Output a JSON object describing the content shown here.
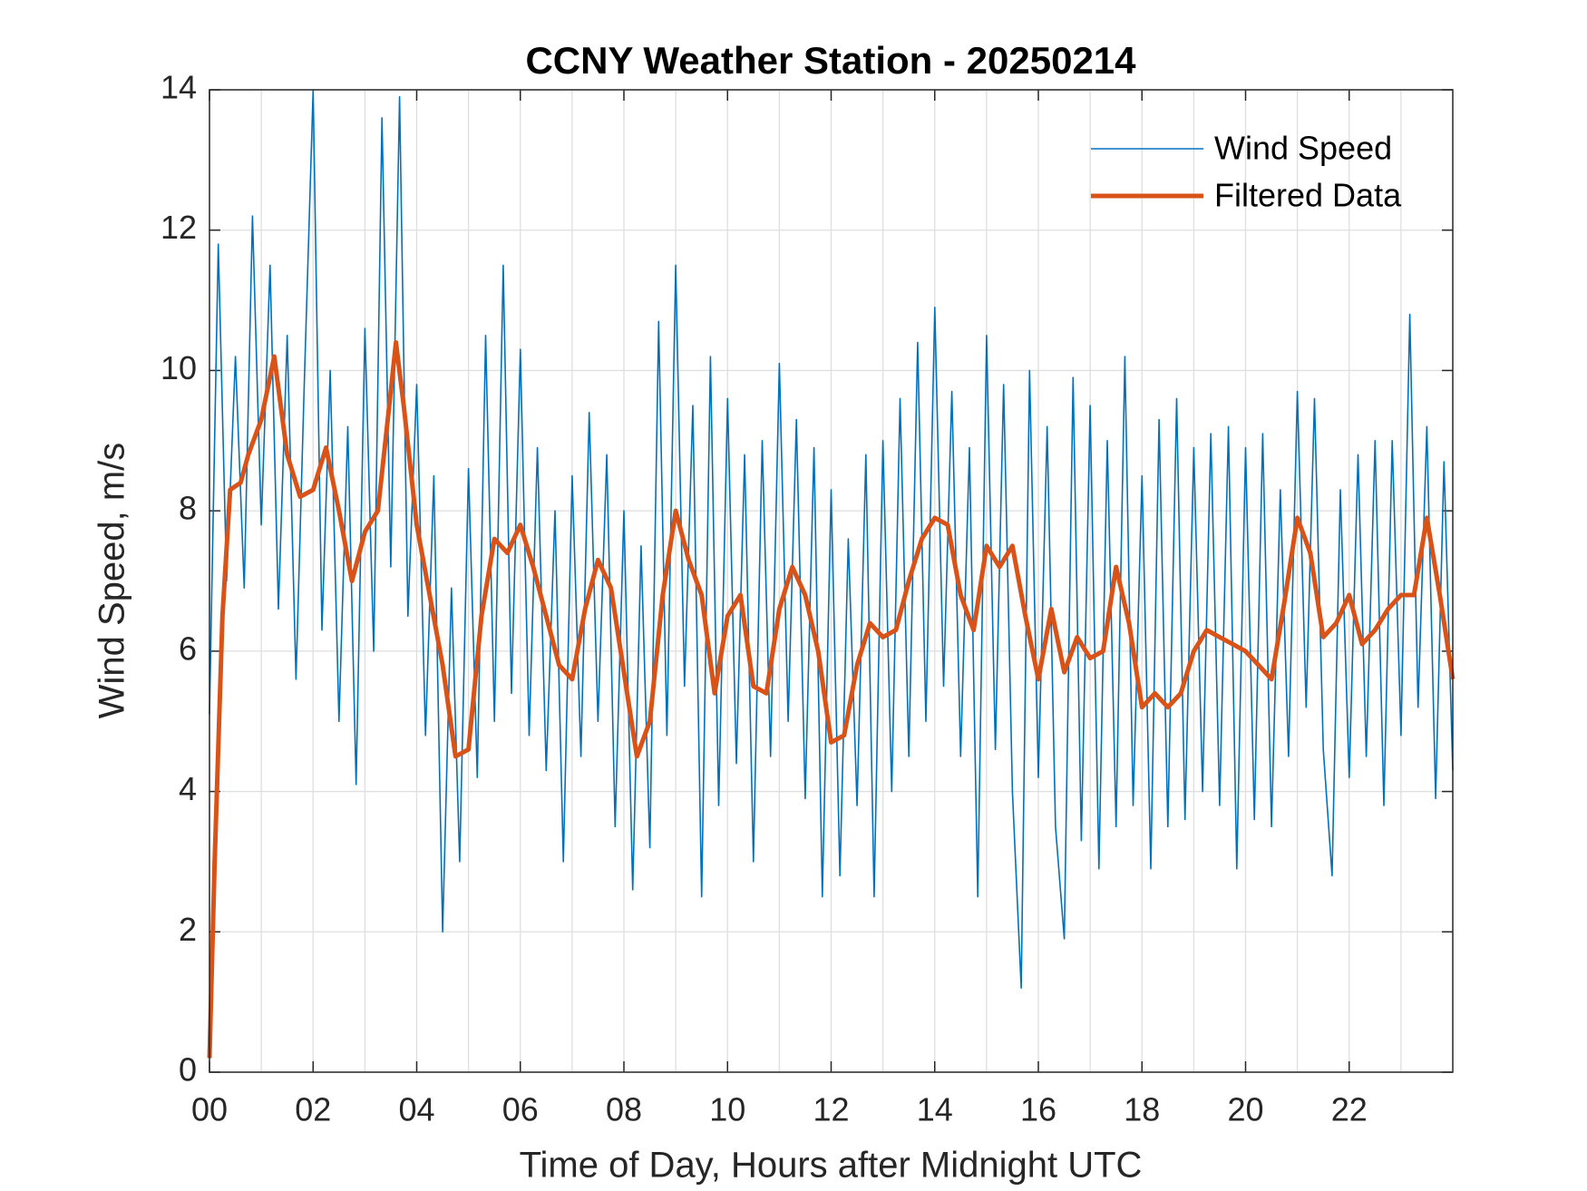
{
  "chart_data": {
    "type": "line",
    "title": "CCNY Weather Station - 20250214",
    "xlabel": "Time of Day, Hours after Midnight UTC",
    "ylabel": "Wind Speed, m/s",
    "xlim": [
      0,
      24
    ],
    "ylim": [
      0,
      14
    ],
    "xticks": [
      {
        "value": 0,
        "label": "00"
      },
      {
        "value": 2,
        "label": "02"
      },
      {
        "value": 4,
        "label": "04"
      },
      {
        "value": 6,
        "label": "06"
      },
      {
        "value": 8,
        "label": "08"
      },
      {
        "value": 10,
        "label": "10"
      },
      {
        "value": 12,
        "label": "12"
      },
      {
        "value": 14,
        "label": "14"
      },
      {
        "value": 16,
        "label": "16"
      },
      {
        "value": 18,
        "label": "18"
      },
      {
        "value": 20,
        "label": "20"
      },
      {
        "value": 22,
        "label": "22"
      }
    ],
    "xminor_grid": [
      1,
      3,
      5,
      7,
      9,
      11,
      13,
      15,
      17,
      19,
      21,
      23
    ],
    "yticks": [
      0,
      2,
      4,
      6,
      8,
      10,
      12,
      14
    ],
    "grid": true,
    "legend": "upper right",
    "series": [
      {
        "name": "Wind Speed",
        "color": "#0072BD",
        "x": [
          0,
          0.17,
          0.33,
          0.5,
          0.67,
          0.83,
          1,
          1.17,
          1.33,
          1.5,
          1.67,
          1.83,
          2,
          2.17,
          2.33,
          2.5,
          2.67,
          2.83,
          3,
          3.17,
          3.33,
          3.5,
          3.67,
          3.83,
          4,
          4.17,
          4.33,
          4.5,
          4.67,
          4.83,
          5,
          5.17,
          5.33,
          5.5,
          5.67,
          5.83,
          6,
          6.17,
          6.33,
          6.5,
          6.67,
          6.83,
          7,
          7.17,
          7.33,
          7.5,
          7.67,
          7.83,
          8,
          8.17,
          8.33,
          8.5,
          8.67,
          8.83,
          9,
          9.17,
          9.33,
          9.5,
          9.67,
          9.83,
          10,
          10.17,
          10.33,
          10.5,
          10.67,
          10.83,
          11,
          11.17,
          11.33,
          11.5,
          11.67,
          11.83,
          12,
          12.17,
          12.33,
          12.5,
          12.67,
          12.83,
          13,
          13.17,
          13.33,
          13.5,
          13.67,
          13.83,
          14,
          14.17,
          14.33,
          14.5,
          14.67,
          14.83,
          15,
          15.17,
          15.33,
          15.5,
          15.67,
          15.83,
          16,
          16.17,
          16.33,
          16.5,
          16.67,
          16.83,
          17,
          17.17,
          17.33,
          17.5,
          17.67,
          17.83,
          18,
          18.17,
          18.33,
          18.5,
          18.67,
          18.83,
          19,
          19.17,
          19.33,
          19.5,
          19.67,
          19.83,
          20,
          20.17,
          20.33,
          20.5,
          20.67,
          20.83,
          21,
          21.17,
          21.33,
          21.5,
          21.67,
          21.83,
          22,
          22.17,
          22.33,
          22.5,
          22.67,
          22.83,
          23,
          23.17,
          23.33,
          23.5,
          23.67,
          23.83,
          24
        ],
        "values": [
          5.1,
          11.8,
          7.0,
          10.2,
          6.9,
          12.2,
          7.8,
          11.5,
          6.6,
          10.5,
          5.6,
          9.8,
          14.0,
          6.3,
          10.0,
          5.0,
          9.2,
          4.1,
          10.6,
          6.0,
          13.6,
          7.2,
          13.9,
          6.5,
          9.8,
          4.8,
          8.5,
          2.0,
          6.9,
          3.0,
          8.6,
          4.2,
          10.5,
          5.0,
          11.5,
          5.4,
          10.3,
          4.8,
          8.9,
          4.3,
          8.0,
          3.0,
          8.5,
          4.5,
          9.4,
          5.0,
          8.8,
          3.5,
          8.0,
          2.6,
          7.5,
          3.2,
          10.7,
          4.8,
          11.5,
          5.5,
          9.5,
          2.5,
          10.2,
          3.8,
          9.6,
          4.4,
          8.8,
          3.0,
          9.0,
          4.5,
          10.1,
          5.0,
          9.3,
          3.9,
          8.9,
          2.5,
          8.3,
          2.8,
          7.6,
          3.8,
          8.8,
          2.5,
          9.0,
          4.0,
          9.6,
          4.5,
          10.4,
          5.0,
          10.9,
          5.5,
          9.7,
          4.5,
          8.9,
          2.5,
          10.5,
          4.6,
          9.8,
          4.0,
          1.2,
          10.0,
          4.2,
          9.2,
          3.5,
          1.9,
          9.9,
          3.3,
          9.5,
          2.9,
          9.0,
          3.5,
          10.2,
          3.8,
          8.5,
          2.9,
          9.3,
          3.5,
          9.6,
          3.6,
          8.9,
          4.0,
          9.1,
          3.8,
          9.2,
          2.9,
          8.9,
          3.6,
          9.1,
          3.5,
          8.3,
          4.5,
          9.7,
          5.2,
          9.6,
          4.6,
          2.8,
          8.3,
          4.2,
          8.8,
          4.5,
          9.0,
          3.8,
          9.0,
          4.8,
          10.8,
          5.2,
          9.2,
          3.9,
          8.7,
          4.3
        ]
      },
      {
        "name": "Filtered Data",
        "color": "#D95319",
        "x": [
          0,
          0.1,
          0.25,
          0.4,
          0.6,
          0.75,
          1,
          1.25,
          1.5,
          1.75,
          2,
          2.25,
          2.5,
          2.75,
          3,
          3.25,
          3.5,
          3.6,
          3.75,
          4,
          4.25,
          4.5,
          4.75,
          5,
          5.25,
          5.5,
          5.75,
          6,
          6.25,
          6.5,
          6.75,
          7,
          7.25,
          7.5,
          7.75,
          8,
          8.25,
          8.5,
          8.75,
          9,
          9.25,
          9.5,
          9.75,
          10,
          10.25,
          10.5,
          10.75,
          11,
          11.25,
          11.5,
          11.75,
          12,
          12.25,
          12.5,
          12.75,
          13,
          13.25,
          13.5,
          13.75,
          14,
          14.25,
          14.5,
          14.75,
          15,
          15.25,
          15.5,
          15.75,
          16,
          16.25,
          16.5,
          16.75,
          17,
          17.25,
          17.5,
          17.75,
          18,
          18.25,
          18.5,
          18.75,
          19,
          19.25,
          19.5,
          19.75,
          20,
          20.25,
          20.5,
          20.75,
          21,
          21.25,
          21.5,
          21.75,
          22,
          22.25,
          22.5,
          22.75,
          23,
          23.25,
          23.5,
          23.75,
          24
        ],
        "values": [
          0.2,
          3,
          6.5,
          8.3,
          8.4,
          8.8,
          9.3,
          10.2,
          8.8,
          8.2,
          8.3,
          8.9,
          8.0,
          7.0,
          7.7,
          8.0,
          9.7,
          10.4,
          9.5,
          7.8,
          6.8,
          5.8,
          4.5,
          4.6,
          6.5,
          7.6,
          7.4,
          7.8,
          7.2,
          6.5,
          5.8,
          5.6,
          6.6,
          7.3,
          6.9,
          5.7,
          4.5,
          5.0,
          6.8,
          8.0,
          7.3,
          6.8,
          5.4,
          6.5,
          6.8,
          5.5,
          5.4,
          6.6,
          7.2,
          6.8,
          6.0,
          4.7,
          4.8,
          5.8,
          6.4,
          6.2,
          6.3,
          7.0,
          7.6,
          7.9,
          7.8,
          6.8,
          6.3,
          7.5,
          7.2,
          7.5,
          6.5,
          5.6,
          6.6,
          5.7,
          6.2,
          5.9,
          6.0,
          7.2,
          6.4,
          5.2,
          5.4,
          5.2,
          5.4,
          6.0,
          6.3,
          6.2,
          6.1,
          6.0,
          5.8,
          5.6,
          6.7,
          7.9,
          7.4,
          6.2,
          6.4,
          6.8,
          6.1,
          6.3,
          6.6,
          6.8,
          6.8,
          7.9,
          6.8,
          5.6
        ]
      }
    ]
  }
}
